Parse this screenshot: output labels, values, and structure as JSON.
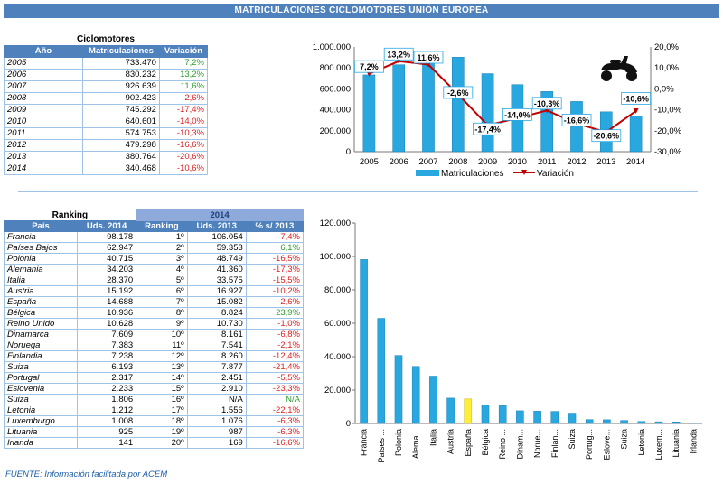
{
  "banner": "MATRICULACIONES CICLOMOTORES UNIÓN EUROPEA",
  "table1": {
    "title": "Ciclomotores",
    "headers": [
      "Año",
      "Matriculaciones",
      "Variación"
    ],
    "rows": [
      {
        "year": "2005",
        "value": "733.470",
        "var": "7,2%",
        "sign": "pos"
      },
      {
        "year": "2006",
        "value": "830.232",
        "var": "13,2%",
        "sign": "pos"
      },
      {
        "year": "2007",
        "value": "926.639",
        "var": "11,6%",
        "sign": "pos"
      },
      {
        "year": "2008",
        "value": "902.423",
        "var": "-2,6%",
        "sign": "neg"
      },
      {
        "year": "2009",
        "value": "745.292",
        "var": "-17,4%",
        "sign": "neg"
      },
      {
        "year": "2010",
        "value": "640.601",
        "var": "-14,0%",
        "sign": "neg"
      },
      {
        "year": "2011",
        "value": "574.753",
        "var": "-10,3%",
        "sign": "neg"
      },
      {
        "year": "2012",
        "value": "479.298",
        "var": "-16,6%",
        "sign": "neg"
      },
      {
        "year": "2013",
        "value": "380.764",
        "var": "-20,6%",
        "sign": "neg"
      },
      {
        "year": "2014",
        "value": "340.468",
        "var": "-10,6%",
        "sign": "neg"
      }
    ]
  },
  "table2": {
    "title": "Ranking",
    "year": "2014",
    "headers": [
      "País",
      "Uds. 2014",
      "Ranking",
      "Uds. 2013",
      "% s/ 2013"
    ],
    "rows": [
      {
        "country": "Francia",
        "u14": "98.178",
        "rank": "1º",
        "u13": "106.054",
        "pct": "-7,4%",
        "sign": "neg"
      },
      {
        "country": "Países Bajos",
        "u14": "62.947",
        "rank": "2º",
        "u13": "59.353",
        "pct": "6,1%",
        "sign": "pos"
      },
      {
        "country": "Polonia",
        "u14": "40.715",
        "rank": "3º",
        "u13": "48.749",
        "pct": "-16,5%",
        "sign": "neg"
      },
      {
        "country": "Alemania",
        "u14": "34.203",
        "rank": "4º",
        "u13": "41.360",
        "pct": "-17,3%",
        "sign": "neg"
      },
      {
        "country": "Italia",
        "u14": "28.370",
        "rank": "5º",
        "u13": "33.575",
        "pct": "-15,5%",
        "sign": "neg"
      },
      {
        "country": "Austria",
        "u14": "15.192",
        "rank": "6º",
        "u13": "16.927",
        "pct": "-10,2%",
        "sign": "neg"
      },
      {
        "country": "España",
        "u14": "14.688",
        "rank": "7º",
        "u13": "15.082",
        "pct": "-2,6%",
        "sign": "neg"
      },
      {
        "country": "Bélgica",
        "u14": "10.936",
        "rank": "8º",
        "u13": "8.824",
        "pct": "23,9%",
        "sign": "pos"
      },
      {
        "country": "Reino Unido",
        "u14": "10.628",
        "rank": "9º",
        "u13": "10.730",
        "pct": "-1,0%",
        "sign": "neg"
      },
      {
        "country": "Dinamarca",
        "u14": "7.609",
        "rank": "10º",
        "u13": "8.161",
        "pct": "-6,8%",
        "sign": "neg"
      },
      {
        "country": "Noruega",
        "u14": "7.383",
        "rank": "11º",
        "u13": "7.541",
        "pct": "-2,1%",
        "sign": "neg"
      },
      {
        "country": "Finlandia",
        "u14": "7.238",
        "rank": "12º",
        "u13": "8.260",
        "pct": "-12,4%",
        "sign": "neg"
      },
      {
        "country": "Suiza",
        "u14": "6.193",
        "rank": "13º",
        "u13": "7.877",
        "pct": "-21,4%",
        "sign": "neg"
      },
      {
        "country": "Portugal",
        "u14": "2.317",
        "rank": "14º",
        "u13": "2.451",
        "pct": "-5,5%",
        "sign": "neg"
      },
      {
        "country": "Eslovenia",
        "u14": "2.233",
        "rank": "15º",
        "u13": "2.910",
        "pct": "-23,3%",
        "sign": "neg"
      },
      {
        "country": "Suiza",
        "u14": "1.806",
        "rank": "16º",
        "u13": "N/A",
        "pct": "N/A",
        "sign": "pos"
      },
      {
        "country": "Letonia",
        "u14": "1.212",
        "rank": "17º",
        "u13": "1.556",
        "pct": "-22,1%",
        "sign": "neg"
      },
      {
        "country": "Luxemburgo",
        "u14": "1.008",
        "rank": "18º",
        "u13": "1.076",
        "pct": "-6,3%",
        "sign": "neg"
      },
      {
        "country": "Lituania",
        "u14": "925",
        "rank": "19º",
        "u13": "987",
        "pct": "-6,3%",
        "sign": "neg"
      },
      {
        "country": "Irlanda",
        "u14": "141",
        "rank": "20º",
        "u13": "169",
        "pct": "-16,6%",
        "sign": "neg"
      }
    ]
  },
  "source": "FUENTE: Información facilitada por ACEM",
  "colors": {
    "header": "#4f81bd",
    "bar": "#29a8e0",
    "highlight": "#ffee33",
    "line": "#c00000",
    "pos": "#2e9e2e",
    "neg": "#e02020"
  },
  "chart_data": [
    {
      "type": "bar",
      "categories": [
        "2005",
        "2006",
        "2007",
        "2008",
        "2009",
        "2010",
        "2011",
        "2012",
        "2013",
        "2014"
      ],
      "series": [
        {
          "name": "Matriculaciones",
          "type": "bar",
          "axis": "left",
          "values": [
            733470,
            830232,
            926639,
            902423,
            745292,
            640601,
            574753,
            479298,
            380764,
            340468
          ]
        },
        {
          "name": "Variación",
          "type": "line",
          "axis": "right",
          "values": [
            7.2,
            13.2,
            11.6,
            -2.6,
            -17.4,
            -14.0,
            -10.3,
            -16.6,
            -20.6,
            -10.6
          ]
        }
      ],
      "data_labels": [
        "7,2%",
        "13,2%",
        "11,6%",
        "-2,6%",
        "-17,4%",
        "-14,0%",
        "-10,3%",
        "-16,6%",
        "-20,6%",
        "-10,6%"
      ],
      "ylim_left": [
        0,
        1000000
      ],
      "ylim_right": [
        -30,
        20
      ],
      "left_ticks": [
        "0",
        "200.000",
        "400.000",
        "600.000",
        "800.000",
        "1.000.000"
      ],
      "right_ticks": [
        "-30,0%",
        "-20,0%",
        "-10,0%",
        "0,0%",
        "10,0%",
        "20,0%"
      ],
      "legend_position": "bottom",
      "grid": false
    },
    {
      "type": "bar",
      "categories": [
        "Francia",
        "Países ...",
        "Polonia",
        "Alema...",
        "Italia",
        "Austria",
        "España",
        "Bélgica",
        "Reino ...",
        "Dinam...",
        "Norue...",
        "Finlan...",
        "Suiza",
        "Portug...",
        "Eslove...",
        "Suiza",
        "Letonia",
        "Luxem...",
        "Lituania",
        "Irlanda"
      ],
      "values": [
        98178,
        62947,
        40715,
        34203,
        28370,
        15192,
        14688,
        10936,
        10628,
        7609,
        7383,
        7238,
        6193,
        2317,
        2233,
        1806,
        1212,
        1008,
        925,
        141
      ],
      "highlight_index": 6,
      "ylim": [
        0,
        120000
      ],
      "ticks": [
        "0",
        "20.000",
        "40.000",
        "60.000",
        "80.000",
        "100.000",
        "120.000"
      ],
      "grid": false
    }
  ]
}
